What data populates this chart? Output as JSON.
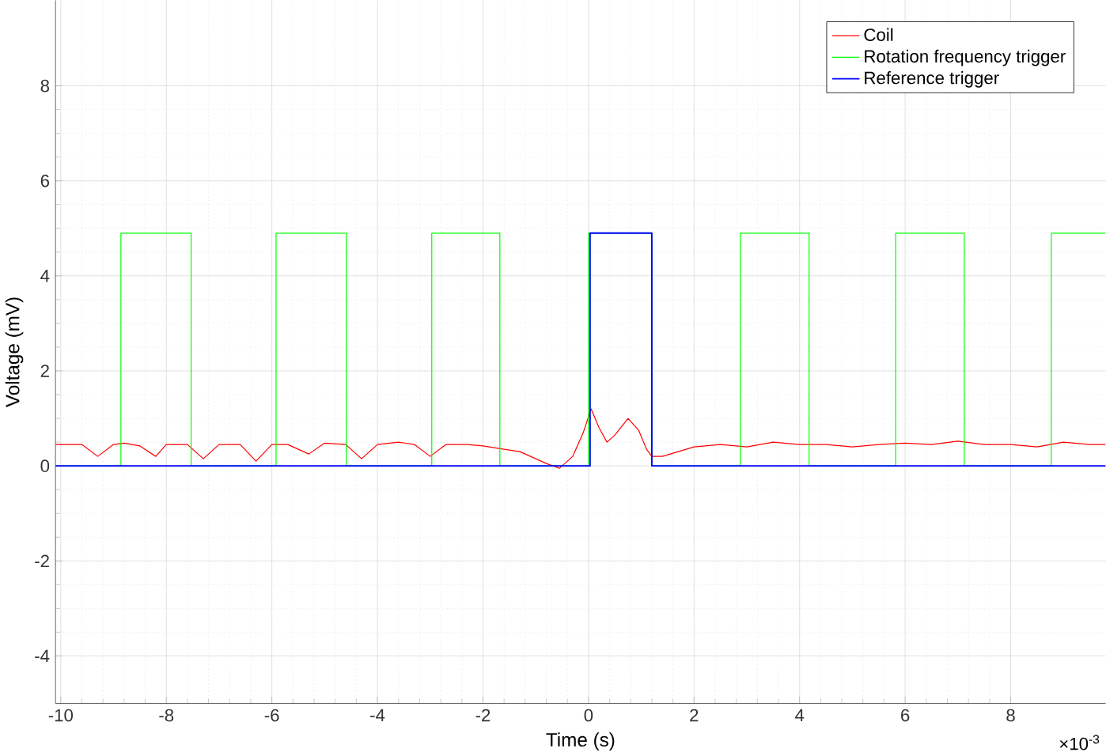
{
  "chart_data": {
    "type": "line",
    "xlabel": "Time (s)",
    "ylabel": "Voltage (mV)",
    "annotations": [
      "×10$^{-3}$"
    ],
    "xlim": [
      -10.1,
      9.8
    ],
    "ylim": [
      -5,
      9.8
    ],
    "xticks": [
      -10,
      -8,
      -6,
      -4,
      -2,
      0,
      2,
      4,
      6,
      8
    ],
    "yticks": [
      -4,
      -2,
      0,
      2,
      4,
      6,
      8
    ],
    "grid": true,
    "legend": "top right",
    "line_style": "solid",
    "marker": "none",
    "series": [
      {
        "name": "Coil",
        "color": "#ff0000",
        "x": [
          -10.1,
          -9.6,
          -9.3,
          -9.0,
          -8.8,
          -8.5,
          -8.2,
          -8.0,
          -7.6,
          -7.3,
          -7.0,
          -6.6,
          -6.3,
          -6.0,
          -5.7,
          -5.3,
          -5.0,
          -4.6,
          -4.3,
          -4.0,
          -3.6,
          -3.3,
          -3.0,
          -2.7,
          -2.3,
          -2.0,
          -1.6,
          -1.3,
          -1.0,
          -0.8,
          -0.55,
          -0.3,
          -0.1,
          0.05,
          0.2,
          0.35,
          0.5,
          0.75,
          0.95,
          1.1,
          1.2,
          1.4,
          1.7,
          2.0,
          2.5,
          3.0,
          3.5,
          4.0,
          4.5,
          5.0,
          5.5,
          6.0,
          6.5,
          7.0,
          7.5,
          8.0,
          8.5,
          9.0,
          9.5,
          9.8
        ],
        "values": [
          0.45,
          0.45,
          0.2,
          0.45,
          0.48,
          0.42,
          0.2,
          0.45,
          0.45,
          0.15,
          0.45,
          0.45,
          0.1,
          0.45,
          0.45,
          0.25,
          0.48,
          0.45,
          0.15,
          0.45,
          0.5,
          0.45,
          0.2,
          0.45,
          0.45,
          0.42,
          0.35,
          0.3,
          0.15,
          0.05,
          -0.05,
          0.2,
          0.7,
          1.2,
          0.8,
          0.5,
          0.65,
          1.0,
          0.75,
          0.35,
          0.2,
          0.2,
          0.3,
          0.4,
          0.45,
          0.4,
          0.5,
          0.45,
          0.45,
          0.4,
          0.45,
          0.48,
          0.45,
          0.52,
          0.45,
          0.45,
          0.4,
          0.5,
          0.45,
          0.45
        ]
      },
      {
        "name": "Rotation frequency trigger",
        "color": "#00ff00",
        "x": [
          -10.1,
          -8.86,
          -8.86,
          -7.53,
          -7.53,
          -5.92,
          -5.92,
          -4.59,
          -4.59,
          -2.97,
          -2.97,
          -1.68,
          -1.68,
          0.0,
          0.0,
          1.2,
          1.2,
          2.88,
          2.88,
          4.18,
          4.18,
          5.82,
          5.82,
          7.12,
          7.12,
          8.77,
          8.77,
          9.8
        ],
        "values": [
          0,
          0,
          4.9,
          4.9,
          0,
          0,
          4.9,
          4.9,
          0,
          0,
          4.9,
          4.9,
          0,
          0,
          4.9,
          4.9,
          0,
          0,
          4.9,
          4.9,
          0,
          0,
          4.9,
          4.9,
          0,
          0,
          4.9,
          4.9
        ]
      },
      {
        "name": "Reference trigger",
        "color": "#0000ff",
        "x": [
          -10.1,
          0.03,
          0.03,
          1.2,
          1.2,
          9.8
        ],
        "values": [
          0,
          0,
          4.9,
          4.9,
          0,
          0
        ]
      }
    ]
  }
}
